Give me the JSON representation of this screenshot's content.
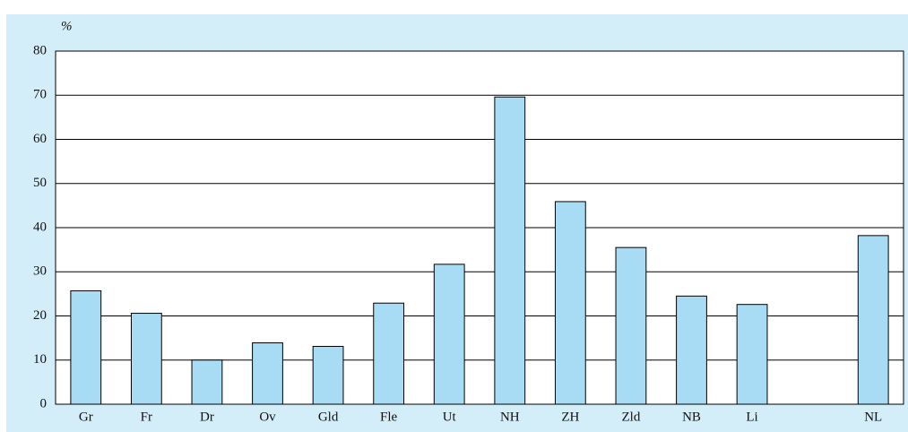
{
  "chart_data": {
    "type": "bar",
    "y_label": "%",
    "categories": [
      "Gr",
      "Fr",
      "Dr",
      "Ov",
      "Gld",
      "Fle",
      "Ut",
      "NH",
      "ZH",
      "Zld",
      "NB",
      "Li",
      null,
      "NL"
    ],
    "values": [
      25.7,
      20.6,
      10,
      13.9,
      13.1,
      22.9,
      31.7,
      69.6,
      45.9,
      35.5,
      24.5,
      22.6,
      null,
      38.2
    ],
    "color": "#a8dcf5",
    "ylim": [
      0,
      80
    ],
    "yticks": [
      0,
      10,
      20,
      30,
      40,
      50,
      60,
      70,
      80
    ],
    "grid": true
  }
}
